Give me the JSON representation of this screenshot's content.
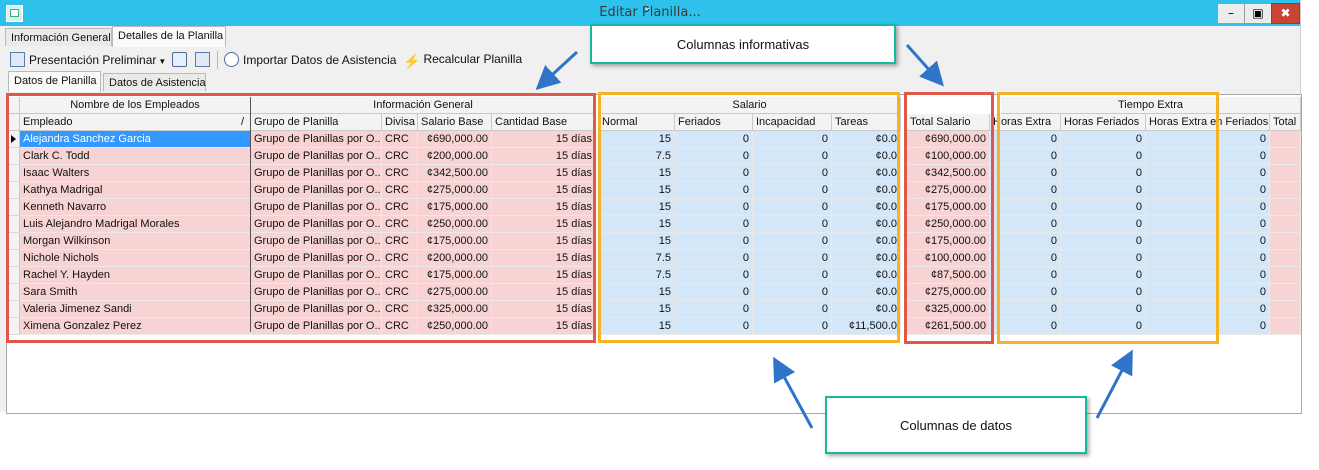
{
  "window": {
    "title": "Editar Planilla...",
    "minimize": "–",
    "maximize": "▣",
    "close": "✖"
  },
  "top_tabs": [
    "Información General",
    "Detalles de la Planilla"
  ],
  "toolbar": {
    "preview": "Presentación Preliminar",
    "import": "Importar Datos de Asistencia",
    "recalc": "Recalcular Planilla"
  },
  "sub_tabs": [
    "Datos de Planilla",
    "Datos de Asistencia"
  ],
  "bands": {
    "employees": "Nombre de los Empleados",
    "general": "Información General",
    "salary": "Salario",
    "overtime": "Tiempo Extra"
  },
  "columns": {
    "employee": "Empleado",
    "sort_mark": "/",
    "group": "Grupo de Planilla",
    "currency": "Divisa",
    "base_salary": "Salario Base",
    "base_qty": "Cantidad Base",
    "normal": "Normal",
    "holidays": "Feriados",
    "disability": "Incapacidad",
    "tasks": "Tareas",
    "total_salary": "Total Salario",
    "ot_hours": "Horas Extra",
    "holiday_hours": "Horas Feriados",
    "ot_holiday_hours": "Horas Extra en Feriados",
    "total_partial": "Total I"
  },
  "rows": [
    {
      "name": "Alejandra Sanchez Garcia",
      "group": "Grupo de Planillas por O...",
      "cur": "CRC",
      "base": "¢690,000.00",
      "qty": "15 días",
      "normal": "15",
      "fer": "0",
      "inc": "0",
      "tareas": "¢0.0",
      "total": "¢690,000.00",
      "he": "0",
      "hf": "0",
      "hef": "0"
    },
    {
      "name": "Clark C. Todd",
      "group": "Grupo de Planillas por O...",
      "cur": "CRC",
      "base": "¢200,000.00",
      "qty": "15 días",
      "normal": "7.5",
      "fer": "0",
      "inc": "0",
      "tareas": "¢0.0",
      "total": "¢100,000.00",
      "he": "0",
      "hf": "0",
      "hef": "0"
    },
    {
      "name": "Isaac Walters",
      "group": "Grupo de Planillas por O...",
      "cur": "CRC",
      "base": "¢342,500.00",
      "qty": "15 días",
      "normal": "15",
      "fer": "0",
      "inc": "0",
      "tareas": "¢0.0",
      "total": "¢342,500.00",
      "he": "0",
      "hf": "0",
      "hef": "0"
    },
    {
      "name": "Kathya Madrigal",
      "group": "Grupo de Planillas por O...",
      "cur": "CRC",
      "base": "¢275,000.00",
      "qty": "15 días",
      "normal": "15",
      "fer": "0",
      "inc": "0",
      "tareas": "¢0.0",
      "total": "¢275,000.00",
      "he": "0",
      "hf": "0",
      "hef": "0"
    },
    {
      "name": "Kenneth Navarro",
      "group": "Grupo de Planillas por O...",
      "cur": "CRC",
      "base": "¢175,000.00",
      "qty": "15 días",
      "normal": "15",
      "fer": "0",
      "inc": "0",
      "tareas": "¢0.0",
      "total": "¢175,000.00",
      "he": "0",
      "hf": "0",
      "hef": "0"
    },
    {
      "name": "Luis Alejandro Madrigal Morales",
      "group": "Grupo de Planillas por O...",
      "cur": "CRC",
      "base": "¢250,000.00",
      "qty": "15 días",
      "normal": "15",
      "fer": "0",
      "inc": "0",
      "tareas": "¢0.0",
      "total": "¢250,000.00",
      "he": "0",
      "hf": "0",
      "hef": "0"
    },
    {
      "name": "Morgan Wilkinson",
      "group": "Grupo de Planillas por O...",
      "cur": "CRC",
      "base": "¢175,000.00",
      "qty": "15 días",
      "normal": "15",
      "fer": "0",
      "inc": "0",
      "tareas": "¢0.0",
      "total": "¢175,000.00",
      "he": "0",
      "hf": "0",
      "hef": "0"
    },
    {
      "name": "Nichole Nichols",
      "group": "Grupo de Planillas por O...",
      "cur": "CRC",
      "base": "¢200,000.00",
      "qty": "15 días",
      "normal": "7.5",
      "fer": "0",
      "inc": "0",
      "tareas": "¢0.0",
      "total": "¢100,000.00",
      "he": "0",
      "hf": "0",
      "hef": "0"
    },
    {
      "name": "Rachel Y. Hayden",
      "group": "Grupo de Planillas por O...",
      "cur": "CRC",
      "base": "¢175,000.00",
      "qty": "15 días",
      "normal": "7.5",
      "fer": "0",
      "inc": "0",
      "tareas": "¢0.0",
      "total": "¢87,500.00",
      "he": "0",
      "hf": "0",
      "hef": "0"
    },
    {
      "name": "Sara Smith",
      "group": "Grupo de Planillas por O...",
      "cur": "CRC",
      "base": "¢275,000.00",
      "qty": "15 días",
      "normal": "15",
      "fer": "0",
      "inc": "0",
      "tareas": "¢0.0",
      "total": "¢275,000.00",
      "he": "0",
      "hf": "0",
      "hef": "0"
    },
    {
      "name": "Valeria Jimenez Sandi",
      "group": "Grupo de Planillas por O...",
      "cur": "CRC",
      "base": "¢325,000.00",
      "qty": "15 días",
      "normal": "15",
      "fer": "0",
      "inc": "0",
      "tareas": "¢0.0",
      "total": "¢325,000.00",
      "he": "0",
      "hf": "0",
      "hef": "0"
    },
    {
      "name": "Ximena Gonzalez Perez",
      "group": "Grupo de Planillas por O...",
      "cur": "CRC",
      "base": "¢250,000.00",
      "qty": "15 días",
      "normal": "15",
      "fer": "0",
      "inc": "0",
      "tareas": "¢11,500.0",
      "total": "¢261,500.00",
      "he": "0",
      "hf": "0",
      "hef": "0"
    }
  ],
  "annotations": {
    "informative": "Columnas informativas",
    "data": "Columnas de datos",
    "colors": {
      "info_box": "#e0584a",
      "data_box": "#f5b225",
      "callout_border": "#18b89c",
      "arrow": "#2f74c8"
    }
  }
}
